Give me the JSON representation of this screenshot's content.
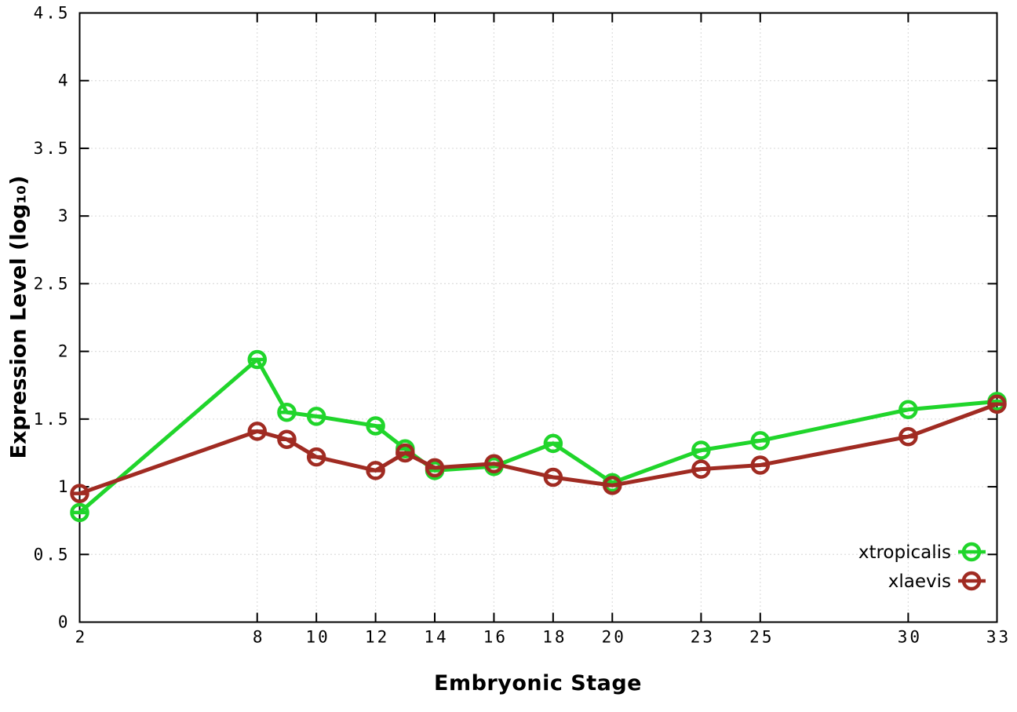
{
  "figure": {
    "background": "#ffffff",
    "border_color": "#000000",
    "grid_color": "#bbbbbb",
    "tick_color": "#000000"
  },
  "chart_data": {
    "type": "line",
    "title": "",
    "xlabel": "Embryonic Stage",
    "ylabel": "Expression Level (log₁₀)",
    "xlim": [
      2,
      33
    ],
    "ylim": [
      0,
      4.5
    ],
    "x_ticks": [
      2,
      8,
      10,
      12,
      14,
      16,
      18,
      20,
      23,
      25,
      30,
      33
    ],
    "y_ticks": [
      0,
      0.5,
      1,
      1.5,
      2,
      2.5,
      3,
      3.5,
      4,
      4.5
    ],
    "grid": true,
    "marker": "open-circle-with-dash",
    "legend_position": "bottom-right",
    "x": [
      2,
      8,
      9,
      10,
      12,
      13,
      14,
      16,
      18,
      20,
      23,
      25,
      30,
      33
    ],
    "series": [
      {
        "name": "xtropicalis",
        "color": "#20d52b",
        "values": [
          0.81,
          1.94,
          1.55,
          1.52,
          1.45,
          1.28,
          1.12,
          1.15,
          1.32,
          1.03,
          1.27,
          1.34,
          1.57,
          1.63
        ]
      },
      {
        "name": "xlaevis",
        "color": "#a02b22",
        "values": [
          0.95,
          1.41,
          1.35,
          1.22,
          1.12,
          1.25,
          1.14,
          1.17,
          1.07,
          1.01,
          1.13,
          1.16,
          1.37,
          1.61
        ]
      }
    ]
  }
}
